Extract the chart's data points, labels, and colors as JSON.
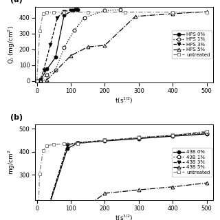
{
  "panel_a": {
    "ylabel": "Q$_i$ (mg/cm$^2$)",
    "xlabel": "t(s$^{1/2}$)",
    "ylim": [
      -10,
      470
    ],
    "xlim": [
      -5,
      520
    ],
    "yticks": [
      0,
      100,
      200,
      300,
      400
    ],
    "xticks": [
      0,
      100,
      200,
      300,
      400,
      500
    ],
    "series": [
      {
        "label": "HPS 0%",
        "x": [
          0,
          10,
          30,
          55,
          80,
          105,
          120
        ],
        "y": [
          0,
          5,
          75,
          150,
          415,
          445,
          450
        ],
        "linestyle": "-",
        "marker": "o",
        "markerfacecolor": "black",
        "color": "black"
      },
      {
        "label": "HPS 1%",
        "x": [
          0,
          10,
          30,
          55,
          80,
          110,
          140,
          200,
          245
        ],
        "y": [
          0,
          3,
          40,
          70,
          210,
          320,
          400,
          445,
          450
        ],
        "linestyle": ":",
        "marker": "o",
        "markerfacecolor": "white",
        "color": "black"
      },
      {
        "label": "HPS 3%",
        "x": [
          0,
          10,
          20,
          40,
          60,
          80,
          100,
          115
        ],
        "y": [
          0,
          8,
          70,
          230,
          400,
          440,
          447,
          450
        ],
        "linestyle": "--",
        "marker": "v",
        "markerfacecolor": "black",
        "color": "black"
      },
      {
        "label": "HPS 5%",
        "x": [
          0,
          10,
          30,
          100,
          150,
          200,
          290,
          400,
          500
        ],
        "y": [
          0,
          3,
          8,
          160,
          215,
          225,
          408,
          425,
          438
        ],
        "linestyle": "-.",
        "marker": "^",
        "markerfacecolor": "white",
        "color": "black"
      },
      {
        "label": "untreated",
        "x": [
          0,
          8,
          18,
          30,
          50,
          80,
          150,
          260,
          400,
          500
        ],
        "y": [
          0,
          315,
          425,
          432,
          435,
          435,
          435,
          435,
          435,
          435
        ],
        "linestyle": "--",
        "marker": "s",
        "markerfacecolor": "white",
        "color": "gray",
        "dashes": [
          5,
          2,
          1,
          2
        ]
      }
    ]
  },
  "panel_b": {
    "ylabel": "mg/cm$^2$",
    "xlabel": "t(s$^{1/2}$)",
    "ylim": [
      190,
      520
    ],
    "xlim": [
      -5,
      520
    ],
    "yticks": [
      300,
      400,
      500
    ],
    "xticks": [
      0,
      100,
      200,
      300,
      400,
      500
    ],
    "series": [
      {
        "label": "43B 0%",
        "x": [
          0,
          90,
          120,
          200,
          300,
          400,
          500
        ],
        "y": [
          0,
          415,
          438,
          447,
          458,
          468,
          478
        ],
        "linestyle": "-",
        "marker": "o",
        "markerfacecolor": "black",
        "color": "black"
      },
      {
        "label": "43B 1%",
        "x": [
          0,
          90,
          120,
          200,
          300,
          400,
          500
        ],
        "y": [
          0,
          432,
          440,
          450,
          460,
          470,
          480
        ],
        "linestyle": ":",
        "marker": "o",
        "markerfacecolor": "white",
        "color": "black"
      },
      {
        "label": "43B 3%",
        "x": [
          0,
          90,
          120,
          200,
          300,
          400,
          500
        ],
        "y": [
          0,
          430,
          440,
          450,
          462,
          472,
          485
        ],
        "linestyle": "--",
        "marker": "v",
        "markerfacecolor": "black",
        "color": "black"
      },
      {
        "label": "43B 5%",
        "x": [
          0,
          200,
          300,
          400,
          500
        ],
        "y": [
          0,
          220,
          235,
          248,
          265
        ],
        "linestyle": "-.",
        "marker": "^",
        "markerfacecolor": "white",
        "color": "black"
      },
      {
        "label": "untreated",
        "x": [
          0,
          8,
          18,
          30,
          50,
          80,
          120,
          200,
          300,
          400,
          500
        ],
        "y": [
          0,
          305,
          405,
          428,
          432,
          435,
          435,
          450,
          462,
          472,
          490
        ],
        "linestyle": "--",
        "marker": "s",
        "markerfacecolor": "white",
        "color": "gray",
        "dashes": [
          5,
          2,
          1,
          2
        ]
      }
    ]
  }
}
